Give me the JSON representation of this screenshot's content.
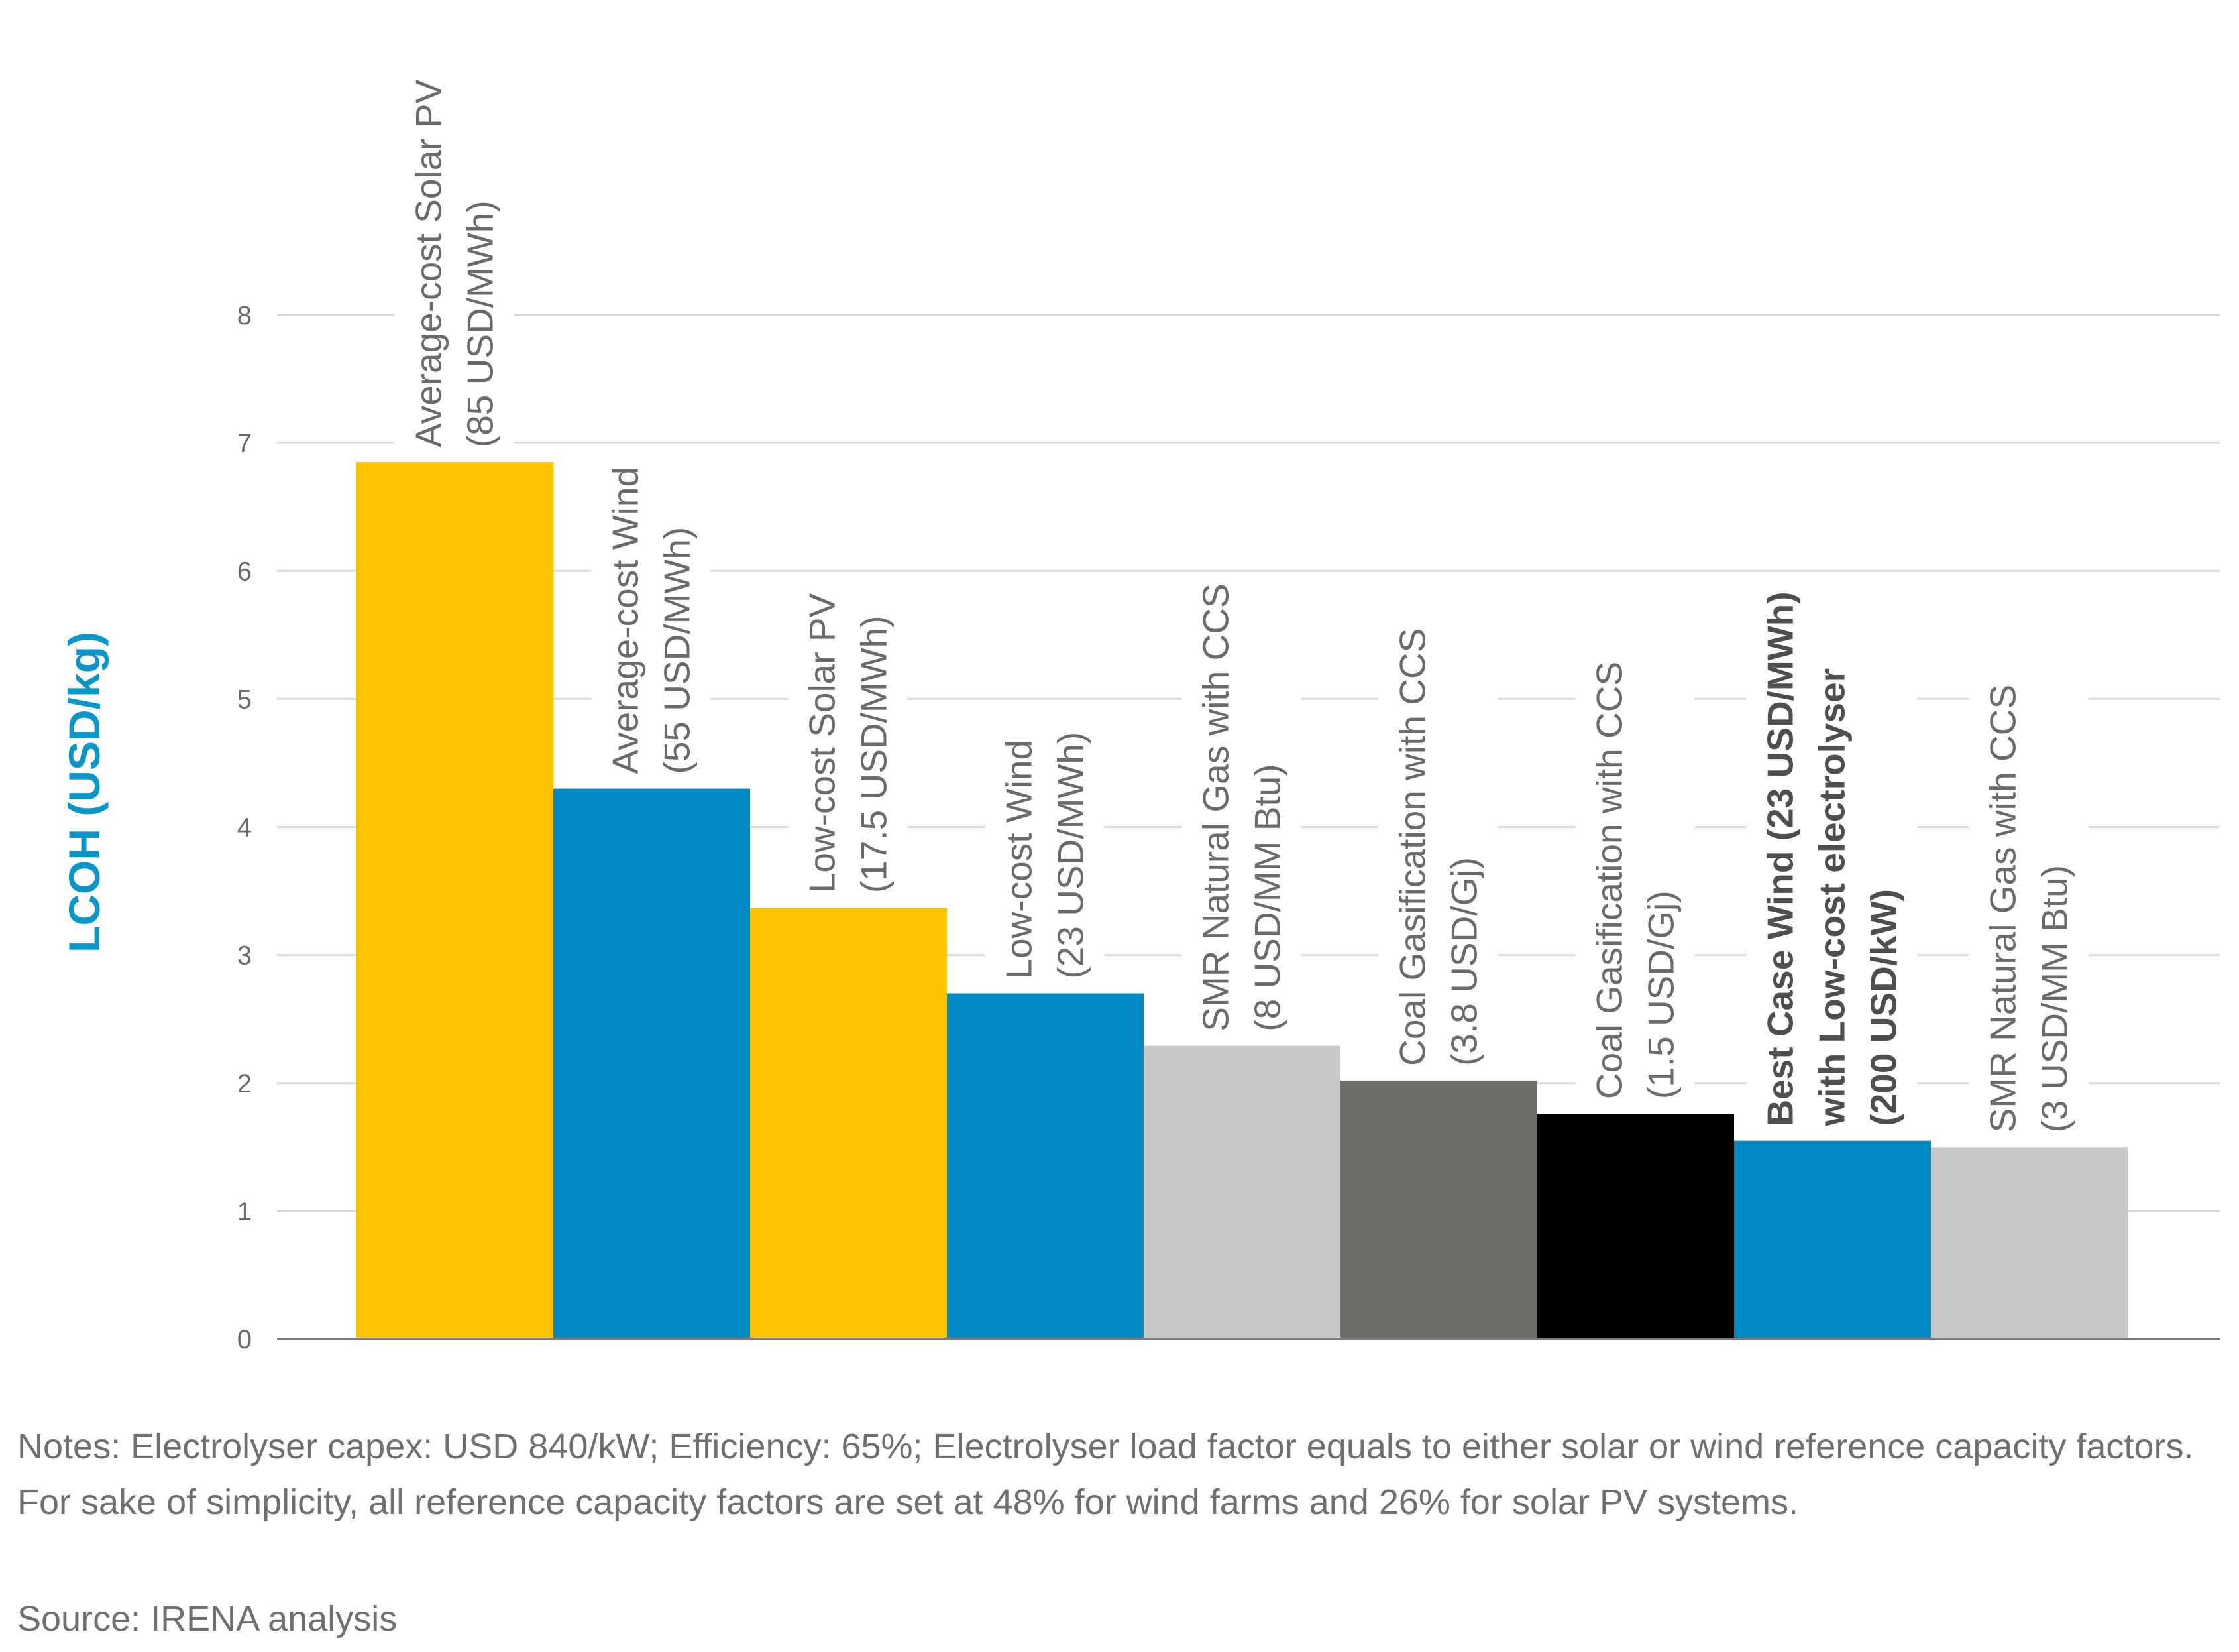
{
  "chart_data": {
    "type": "bar",
    "ylabel": "LCOH (USD/kg)",
    "ylim": [
      0,
      8
    ],
    "yticks": [
      0,
      1,
      2,
      3,
      4,
      5,
      6,
      7,
      8
    ],
    "grid": true,
    "bars": [
      {
        "label_lines": [
          "Average-cost Solar PV",
          "(85 USD/MWh)"
        ],
        "value": 6.85,
        "color": "#fcc400",
        "bold": false
      },
      {
        "label_lines": [
          "Average-cost Wind",
          "(55 USD/MWh)"
        ],
        "value": 4.3,
        "color": "#0089c2",
        "bold": false
      },
      {
        "label_lines": [
          "Low-cost Solar PV",
          "(17.5 USD/MWh)"
        ],
        "value": 3.37,
        "color": "#fcc400",
        "bold": false
      },
      {
        "label_lines": [
          "Low-cost Wind",
          "(23 USD/MWh)"
        ],
        "value": 2.7,
        "color": "#0089c2",
        "bold": false
      },
      {
        "label_lines": [
          "SMR Natural Gas with CCS",
          "(8 USD/MM Btu)"
        ],
        "value": 2.29,
        "color": "#c8c8cb",
        "bold": false
      },
      {
        "label_lines": [
          "Coal Gasification with CCS",
          "(3.8 USD/Gj)"
        ],
        "value": 2.02,
        "color": "#6b6d69",
        "bold": false
      },
      {
        "label_lines": [
          "Coal Gasification with CCS",
          "(1.5 USD/Gj)"
        ],
        "value": 1.76,
        "color": "#000000",
        "bold": false
      },
      {
        "label_lines": [
          "Best Case Wind (23 USD/MWh)",
          "with Low-cost electrolyser",
          "(200 USD/kW)"
        ],
        "value": 1.55,
        "color": "#0089c2",
        "bold": true
      },
      {
        "label_lines": [
          "SMR Natural Gas with CCS",
          "(3 USD/MM Btu)"
        ],
        "value": 1.5,
        "color": "#c8c8cb",
        "bold": false
      }
    ]
  },
  "notes": "Notes: Electrolyser capex: USD 840/kW; Efficiency: 65%; Electrolyser load factor equals to either solar or wind reference capacity factors. For sake of simplicity, all reference capacity factors are set at 48% for wind farms and 26% for solar PV systems.",
  "source": "Source: IRENA analysis"
}
